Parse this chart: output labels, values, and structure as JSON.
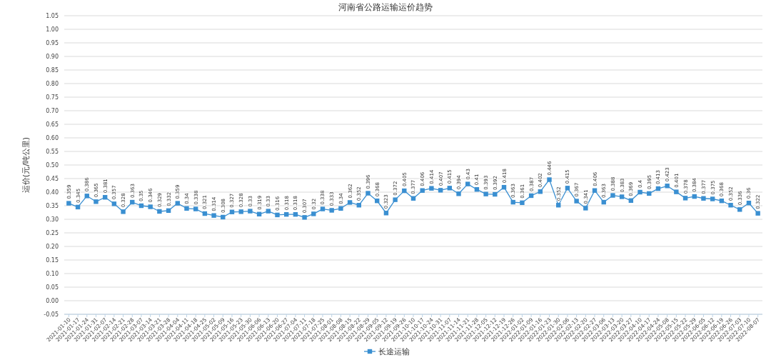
{
  "chart_data": {
    "type": "line",
    "title": "河南省公路运输运价趋势",
    "ylabel": "运价(元/吨公里)",
    "categories": [
      "2021-01-10",
      "2021-01-17",
      "2021-01-24",
      "2021-01-31",
      "2021-02-07",
      "2021-02-14",
      "2021-02-21",
      "2021-02-28",
      "2021-03-07",
      "2021-03-14",
      "2021-03-21",
      "2021-03-28",
      "2021-04-04",
      "2021-04-11",
      "2021-04-18",
      "2021-04-25",
      "2021-05-02",
      "2021-05-09",
      "2021-05-16",
      "2021-05-23",
      "2021-05-30",
      "2021-06-06",
      "2021-06-13",
      "2021-06-20",
      "2021-06-27",
      "2021-07-04",
      "2021-07-11",
      "2021-07-18",
      "2021-07-25",
      "2021-08-01",
      "2021-08-08",
      "2021-08-15",
      "2021-08-22",
      "2021-08-29",
      "2021-09-05",
      "2021-09-12",
      "2021-09-19",
      "2021-09-26",
      "2021-10-10",
      "2021-10-17",
      "2021-10-24",
      "2021-10-31",
      "2021-11-07",
      "2021-11-14",
      "2021-11-21",
      "2021-11-28",
      "2021-12-05",
      "2021-12-12",
      "2021-12-19",
      "2021-12-26",
      "2022-01-02",
      "2022-01-09",
      "2022-01-16",
      "2022-01-23",
      "2022-01-30",
      "2022-02-06",
      "2022-02-13",
      "2022-02-20",
      "2022-02-27",
      "2022-03-06",
      "2022-03-13",
      "2022-03-20",
      "2022-03-27",
      "2022-04-10",
      "2022-04-17",
      "2022-04-24",
      "2022-05-08",
      "2022-05-15",
      "2022-05-22",
      "2022-05-29",
      "2022-06-05",
      "2022-06-12",
      "2022-06-19",
      "2022-06-26",
      "2022-07-03",
      "2022-07-10",
      "2022-08-07"
    ],
    "series": [
      {
        "name": "长途运输",
        "color": "#3a8fd1",
        "values": [
          0.359,
          0.345,
          0.386,
          0.365,
          0.381,
          0.357,
          0.328,
          0.363,
          0.35,
          0.346,
          0.329,
          0.332,
          0.359,
          0.34,
          0.338,
          0.321,
          0.314,
          0.308,
          0.327,
          0.328,
          0.33,
          0.319,
          0.33,
          0.316,
          0.318,
          0.318,
          0.307,
          0.32,
          0.338,
          0.333,
          0.34,
          0.362,
          0.352,
          0.396,
          0.368,
          0.323,
          0.372,
          0.405,
          0.377,
          0.406,
          0.414,
          0.407,
          0.415,
          0.394,
          0.43,
          0.41,
          0.393,
          0.392,
          0.418,
          0.363,
          0.361,
          0.387,
          0.402,
          0.446,
          0.352,
          0.415,
          0.367,
          0.341,
          0.406,
          0.363,
          0.388,
          0.383,
          0.369,
          0.4,
          0.395,
          0.413,
          0.423,
          0.401,
          0.378,
          0.384,
          0.377,
          0.375,
          0.368,
          0.352,
          0.336,
          0.36,
          0.322
        ]
      }
    ],
    "ylim": [
      -0.05,
      1.05
    ],
    "yticks": [
      {
        "value": -0.05,
        "label": "-0.05"
      },
      {
        "value": 0,
        "label": "0.00"
      },
      {
        "value": 0.05,
        "label": "0.05"
      },
      {
        "value": 0.1,
        "label": "0.10"
      },
      {
        "value": 0.15,
        "label": "0.15"
      },
      {
        "value": 0.2,
        "label": "0.20"
      },
      {
        "value": 0.25,
        "label": "0.25"
      },
      {
        "value": 0.3,
        "label": "0.30"
      },
      {
        "value": 0.35,
        "label": "0.35"
      },
      {
        "value": 0.4,
        "label": "0.40"
      },
      {
        "value": 0.45,
        "label": "0.45"
      },
      {
        "value": 0.5,
        "label": "0.50"
      },
      {
        "value": 0.55,
        "label": "0.55"
      },
      {
        "value": 0.6,
        "label": "0.60"
      },
      {
        "value": 0.65,
        "label": "0.65"
      },
      {
        "value": 0.7,
        "label": "0.70"
      },
      {
        "value": 0.75,
        "label": "0.75"
      },
      {
        "value": 0.8,
        "label": "0.80"
      },
      {
        "value": 0.85,
        "label": "0.85"
      },
      {
        "value": 0.9,
        "label": "0.90"
      },
      {
        "value": 0.95,
        "label": "0.95"
      },
      {
        "value": 1,
        "label": "1.00"
      },
      {
        "value": 1.05,
        "label": "1.05"
      }
    ],
    "grid": "y",
    "legend": "bottom",
    "marker": "square",
    "line_style": "solid",
    "data_labels": true
  }
}
